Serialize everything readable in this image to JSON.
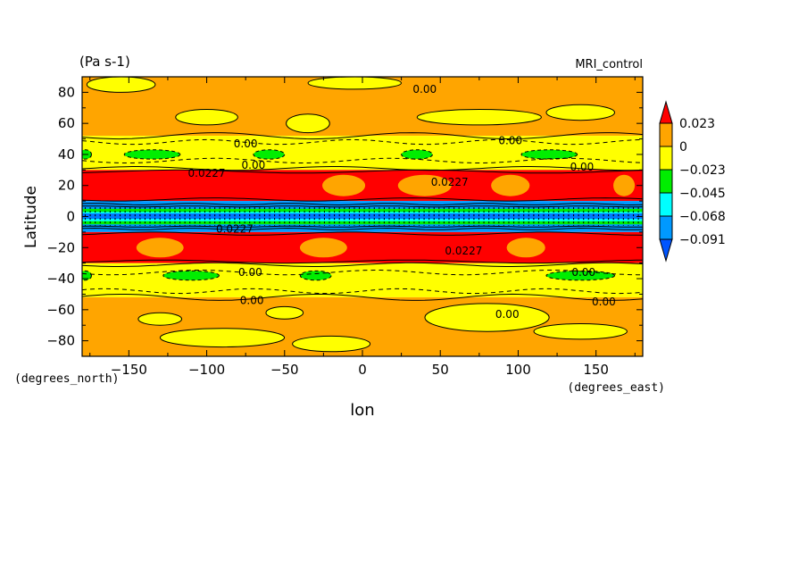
{
  "chart_data": {
    "type": "heatmap",
    "units_label": "(Pa s-1)",
    "model_label": "MRI_control",
    "xlabel": "lon",
    "ylabel": "Latitude",
    "x_units_label": "(degrees_east)",
    "y_units_label": "(degrees_north)",
    "xlim": [
      -180,
      180
    ],
    "ylim": [
      -90,
      90
    ],
    "x_ticks": [
      -150,
      -100,
      -50,
      0,
      50,
      100,
      150
    ],
    "y_ticks": [
      -80,
      -60,
      -40,
      -20,
      0,
      20,
      40,
      60,
      80
    ],
    "colorbar": {
      "levels": [
        "0.023",
        "0",
        "-0.023",
        "-0.045",
        "-0.068",
        "-0.091"
      ],
      "colors": [
        "#ff0000",
        "#ffa500",
        "#ffff00",
        "#00ee00",
        "#00ffff",
        "#0099ff",
        "#0055ff"
      ]
    },
    "bands": [
      {
        "lat": [
          52,
          90
        ],
        "category": "0 to 0.023"
      },
      {
        "lat": [
          30,
          52
        ],
        "category": "-0.023 to 0"
      },
      {
        "lat": [
          10,
          30
        ],
        "category": "> 0.023"
      },
      {
        "lat": [
          -10,
          10
        ],
        "category": "< -0.068"
      },
      {
        "lat": [
          -30,
          -10
        ],
        "category": "> 0.023"
      },
      {
        "lat": [
          -52,
          -30
        ],
        "category": "-0.023 to 0"
      },
      {
        "lat": [
          -90,
          -52
        ],
        "category": "0 to 0.023"
      }
    ],
    "contour_labels": [
      {
        "text": "0.00",
        "lon": 40,
        "lat": 82
      },
      {
        "text": "0.00",
        "lon": -75,
        "lat": 47
      },
      {
        "text": "0.00",
        "lon": 95,
        "lat": 49
      },
      {
        "text": "0.00",
        "lon": -70,
        "lat": 33
      },
      {
        "text": "0.00",
        "lon": 141,
        "lat": 32
      },
      {
        "text": "0.0227",
        "lon": -100,
        "lat": 28
      },
      {
        "text": "0.0227",
        "lon": 56,
        "lat": 22
      },
      {
        "text": "0.0227",
        "lon": -82,
        "lat": -8
      },
      {
        "text": "0.0227",
        "lon": 65,
        "lat": -22
      },
      {
        "text": "0.00",
        "lon": -72,
        "lat": -36
      },
      {
        "text": "0.00",
        "lon": 142,
        "lat": -36
      },
      {
        "text": "0.00",
        "lon": -71,
        "lat": -54
      },
      {
        "text": "0.00",
        "lon": 155,
        "lat": -55
      },
      {
        "text": "0.00",
        "lon": 93,
        "lat": -63
      }
    ]
  }
}
